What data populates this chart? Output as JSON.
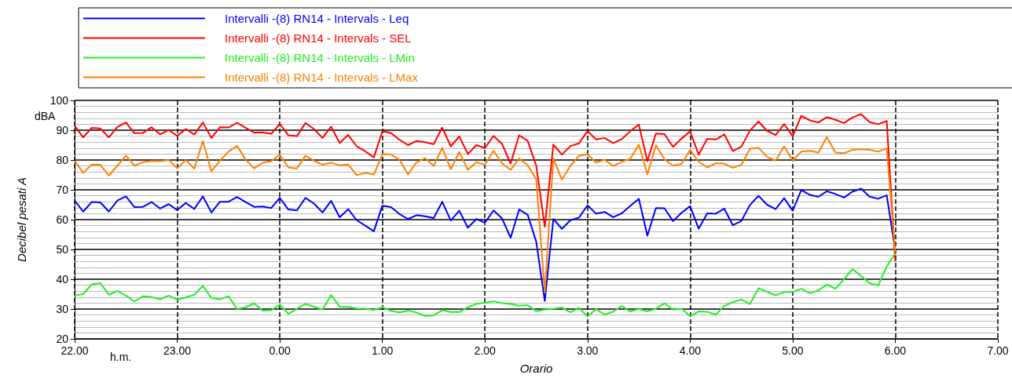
{
  "chart_data": {
    "type": "line",
    "xlabel": "Orario",
    "ylabel": "Decibel pesati A",
    "annotations": [
      "dBA",
      "h.m."
    ],
    "categories": [
      "22.00",
      null,
      null,
      null,
      null,
      null,
      null,
      null,
      null,
      null,
      null,
      null,
      "23.00",
      null,
      null,
      null,
      null,
      null,
      null,
      null,
      null,
      null,
      null,
      null,
      "0.00",
      null,
      null,
      null,
      null,
      null,
      null,
      null,
      null,
      null,
      null,
      null,
      "1.00",
      null,
      null,
      null,
      null,
      null,
      null,
      null,
      null,
      null,
      null,
      null,
      "2.00",
      null,
      null,
      null,
      null,
      null,
      null,
      null,
      null,
      null,
      null,
      null,
      "3.00",
      null,
      null,
      null,
      null,
      null,
      null,
      null,
      null,
      null,
      null,
      null,
      "4.00",
      null,
      null,
      null,
      null,
      null,
      null,
      null,
      null,
      null,
      null,
      null,
      "5.00",
      null,
      null,
      null,
      null,
      null,
      null,
      null,
      null,
      null,
      null,
      null,
      "6.00",
      null,
      null,
      null,
      null,
      null,
      null,
      null,
      null,
      null,
      null,
      null,
      "7.00"
    ],
    "series": [
      {
        "name": "Intervalli -(8) RN14 - Intervals - Leq",
        "color": "#0000ff",
        "values": [
          66.4,
          62.7,
          65.9,
          65.8,
          62.7,
          66.4,
          67.8,
          64.2,
          64.3,
          65.9,
          63.7,
          65.2,
          63.2,
          65.6,
          63.6,
          67.8,
          62.4,
          66.0,
          66.0,
          67.6,
          65.9,
          64.3,
          64.4,
          63.9,
          67.3,
          63.4,
          63.1,
          67.3,
          65.4,
          62.4,
          66.3,
          60.8,
          63.5,
          59.8,
          58.0,
          56.1,
          64.7,
          64.2,
          61.9,
          60.2,
          61.5,
          61.1,
          60.5,
          66.0,
          59.7,
          63.0,
          57.3,
          60.2,
          59.0,
          63.1,
          60.4,
          53.9,
          63.4,
          61.6,
          52.6,
          32.7,
          60.2,
          56.9,
          59.8,
          60.7,
          64.8,
          62.0,
          62.6,
          60.8,
          62.1,
          64.6,
          67.0,
          54.6,
          63.9,
          63.8,
          59.5,
          62.3,
          64.5,
          57.0,
          62.1,
          62.0,
          63.7,
          58.1,
          59.6,
          64.9,
          68.0,
          65.0,
          63.5,
          67.2,
          63.0,
          69.9,
          68.3,
          67.7,
          69.5,
          68.6,
          67.4,
          69.4,
          70.4,
          67.7,
          67.0,
          68.2,
          49.7,
          null,
          null,
          null,
          null,
          null,
          null,
          null,
          null,
          null,
          null,
          null,
          null
        ]
      },
      {
        "name": "Intervalli -(8) RN14 - Intervals - SEL",
        "color": "#ff0000",
        "values": [
          91.5,
          87.6,
          90.8,
          90.6,
          87.6,
          91.1,
          92.6,
          89.0,
          89.1,
          91.0,
          88.6,
          90.1,
          88.1,
          90.4,
          88.6,
          92.6,
          87.4,
          91.0,
          90.9,
          92.5,
          90.8,
          89.2,
          89.3,
          88.8,
          92.1,
          88.3,
          88.0,
          92.4,
          90.4,
          87.4,
          91.2,
          85.7,
          88.4,
          84.6,
          82.9,
          80.9,
          89.6,
          89.1,
          86.8,
          85.0,
          86.4,
          86.0,
          85.3,
          90.9,
          84.6,
          87.9,
          82.0,
          85.0,
          84.0,
          88.1,
          85.4,
          78.8,
          88.3,
          86.4,
          78.1,
          57.6,
          85.2,
          81.8,
          84.7,
          85.6,
          89.7,
          86.9,
          87.4,
          85.7,
          87.0,
          89.7,
          91.9,
          79.6,
          88.9,
          88.7,
          84.4,
          87.2,
          89.6,
          81.8,
          87.1,
          86.9,
          88.6,
          83.0,
          84.5,
          89.9,
          92.9,
          89.8,
          88.4,
          92.1,
          88.0,
          94.8,
          93.3,
          92.6,
          94.4,
          93.5,
          92.4,
          94.3,
          95.4,
          92.7,
          92.0,
          93.1,
          46.0,
          null,
          null,
          null,
          null,
          null,
          null,
          null,
          null,
          null,
          null,
          null,
          null
        ]
      },
      {
        "name": "Intervalli -(8) RN14 - Intervals - LMin",
        "color": "#22ee22",
        "values": [
          34.6,
          35.0,
          38.3,
          38.7,
          34.8,
          36.1,
          34.5,
          32.5,
          34.3,
          34.0,
          33.3,
          34.5,
          33.1,
          33.9,
          34.8,
          37.8,
          33.7,
          33.3,
          34.3,
          30.0,
          30.6,
          31.9,
          29.5,
          29.6,
          31.5,
          28.4,
          30.1,
          31.7,
          30.8,
          29.8,
          34.7,
          30.8,
          30.7,
          30.2,
          30.1,
          29.7,
          30.6,
          29.4,
          28.9,
          29.5,
          28.8,
          27.7,
          27.9,
          29.6,
          29.0,
          29.0,
          30.6,
          31.7,
          32.1,
          32.6,
          32.0,
          31.7,
          31.1,
          31.3,
          29.3,
          29.8,
          30.1,
          30.5,
          28.9,
          30.4,
          27.5,
          30.0,
          28.1,
          29.1,
          31.0,
          29.2,
          30.0,
          29.2,
          30.1,
          31.9,
          29.8,
          30.1,
          27.6,
          29.2,
          29.1,
          28.1,
          31.1,
          32.3,
          33.2,
          31.7,
          37.0,
          35.8,
          34.6,
          35.7,
          35.7,
          36.8,
          35.3,
          36.3,
          38.2,
          36.8,
          40.0,
          43.4,
          41.1,
          38.7,
          37.9,
          44.3,
          48.6,
          null,
          null,
          null,
          null,
          null,
          null,
          null,
          null,
          null,
          null,
          null,
          null
        ]
      },
      {
        "name": "Intervalli -(8) RN14 - Intervals - LMax",
        "color": "#ff8000",
        "values": [
          79.8,
          75.7,
          78.5,
          78.4,
          74.8,
          78.1,
          81.5,
          78.1,
          79.3,
          79.7,
          79.6,
          80.0,
          77.2,
          80.0,
          77.1,
          86.4,
          76.2,
          79.8,
          82.8,
          84.8,
          80.1,
          77.2,
          79.1,
          79.6,
          81.8,
          77.5,
          77.2,
          81.4,
          79.8,
          78.4,
          79.1,
          78.2,
          78.5,
          74.9,
          75.7,
          75.1,
          82.0,
          81.9,
          80.1,
          75.2,
          79.2,
          80.6,
          78.0,
          84.1,
          76.9,
          82.7,
          76.7,
          79.3,
          78.4,
          83.1,
          78.9,
          76.7,
          80.5,
          78.2,
          73.5,
          35.6,
          80.5,
          73.4,
          78.1,
          81.4,
          81.9,
          79.1,
          80.1,
          78.0,
          79.4,
          80.4,
          85.2,
          75.2,
          85.0,
          80.2,
          78.1,
          78.7,
          83.4,
          79.4,
          77.5,
          78.9,
          78.8,
          77.4,
          78.4,
          83.8,
          84.1,
          81.1,
          79.8,
          84.6,
          79.8,
          82.8,
          83.1,
          82.5,
          87.7,
          82.5,
          82.3,
          83.4,
          83.6,
          83.4,
          82.8,
          83.9,
          49.0,
          null,
          null,
          null,
          null,
          null,
          null,
          null,
          null,
          null,
          null,
          null,
          null
        ]
      }
    ],
    "ylim": [
      20,
      100
    ],
    "yticks": [
      20,
      {
        "value": 22,
        "label": null
      },
      {
        "value": 24,
        "label": null
      },
      {
        "value": 26,
        "label": null
      },
      {
        "value": 28,
        "label": null
      },
      30,
      {
        "value": 32,
        "label": null
      },
      {
        "value": 34,
        "label": null
      },
      {
        "value": 36,
        "label": null
      },
      {
        "value": 38,
        "label": null
      },
      40,
      {
        "value": 42,
        "label": null
      },
      {
        "value": 44,
        "label": null
      },
      {
        "value": 46,
        "label": null
      },
      {
        "value": 48,
        "label": null
      },
      50,
      {
        "value": 52,
        "label": null
      },
      {
        "value": 54,
        "label": null
      },
      {
        "value": 56,
        "label": null
      },
      {
        "value": 58,
        "label": null
      },
      60,
      {
        "value": 62,
        "label": null
      },
      {
        "value": 64,
        "label": null
      },
      {
        "value": 66,
        "label": null
      },
      {
        "value": 68,
        "label": null
      },
      70,
      {
        "value": 72,
        "label": null
      },
      {
        "value": 74,
        "label": null
      },
      {
        "value": 76,
        "label": null
      },
      {
        "value": 78,
        "label": null
      },
      80,
      {
        "value": 82,
        "label": null
      },
      {
        "value": 84,
        "label": null
      },
      {
        "value": 86,
        "label": null
      },
      {
        "value": 88,
        "label": null
      },
      90,
      {
        "value": 92,
        "label": null
      },
      {
        "value": 94,
        "label": null
      },
      {
        "value": 96,
        "label": null
      },
      {
        "value": 98,
        "label": null
      },
      100
    ],
    "grid": true,
    "legend": "top",
    "marker": "none",
    "line_style": "solid"
  }
}
